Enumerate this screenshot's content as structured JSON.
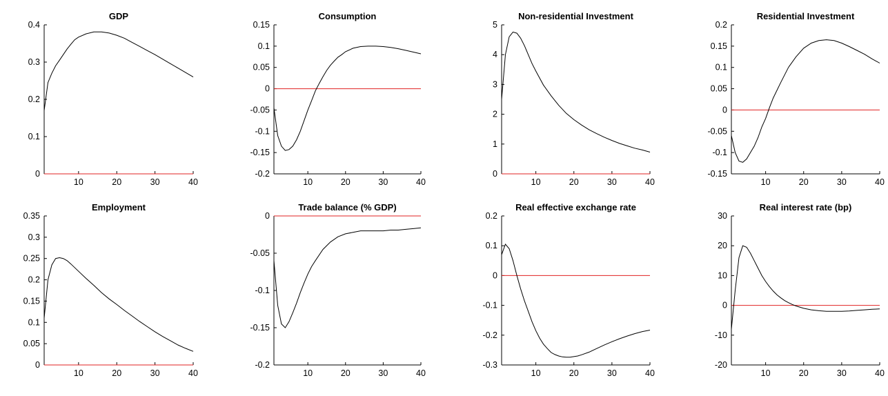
{
  "chart_data": [
    {
      "type": "line",
      "title": "GDP",
      "xlim": [
        1,
        40
      ],
      "ylim": [
        0,
        0.4
      ],
      "xticks": [
        10,
        20,
        30,
        40
      ],
      "yticks": [
        "0",
        "0.1",
        "0.2",
        "0.3",
        "0.4"
      ],
      "zero_line": true,
      "x": [
        1,
        2,
        3,
        4,
        5,
        6,
        7,
        8,
        9,
        10,
        12,
        14,
        16,
        18,
        20,
        22,
        24,
        26,
        28,
        30,
        32,
        34,
        36,
        38,
        40
      ],
      "y": [
        0.17,
        0.245,
        0.27,
        0.29,
        0.305,
        0.32,
        0.335,
        0.348,
        0.36,
        0.367,
        0.376,
        0.381,
        0.381,
        0.378,
        0.372,
        0.364,
        0.353,
        0.342,
        0.331,
        0.32,
        0.308,
        0.296,
        0.284,
        0.272,
        0.26
      ]
    },
    {
      "type": "line",
      "title": "Consumption",
      "xlim": [
        1,
        40
      ],
      "ylim": [
        -0.2,
        0.15
      ],
      "xticks": [
        10,
        20,
        30,
        40
      ],
      "yticks": [
        "-0.2",
        "-0.15",
        "-0.1",
        "-0.05",
        "0",
        "0.05",
        "0.1",
        "0.15"
      ],
      "zero_line": true,
      "x": [
        1,
        2,
        3,
        4,
        5,
        6,
        7,
        8,
        9,
        10,
        11,
        12,
        13,
        14,
        15,
        16,
        17,
        18,
        19,
        20,
        22,
        24,
        26,
        28,
        30,
        32,
        34,
        36,
        38,
        40
      ],
      "y": [
        -0.045,
        -0.11,
        -0.135,
        -0.145,
        -0.143,
        -0.135,
        -0.12,
        -0.1,
        -0.075,
        -0.05,
        -0.028,
        -0.005,
        0.012,
        0.028,
        0.043,
        0.055,
        0.065,
        0.074,
        0.08,
        0.087,
        0.095,
        0.099,
        0.1,
        0.1,
        0.099,
        0.097,
        0.094,
        0.09,
        0.086,
        0.082
      ]
    },
    {
      "type": "line",
      "title": "Non-residential Investment",
      "xlim": [
        1,
        40
      ],
      "ylim": [
        0,
        5
      ],
      "xticks": [
        10,
        20,
        30,
        40
      ],
      "yticks": [
        "0",
        "1",
        "2",
        "3",
        "4",
        "5"
      ],
      "zero_line": true,
      "x": [
        1,
        2,
        3,
        4,
        5,
        6,
        7,
        8,
        9,
        10,
        12,
        14,
        16,
        18,
        20,
        22,
        24,
        26,
        28,
        30,
        32,
        34,
        36,
        38,
        40
      ],
      "y": [
        2.5,
        4.0,
        4.6,
        4.76,
        4.72,
        4.55,
        4.3,
        4.0,
        3.7,
        3.45,
        2.98,
        2.62,
        2.3,
        2.03,
        1.82,
        1.64,
        1.48,
        1.35,
        1.23,
        1.12,
        1.02,
        0.94,
        0.86,
        0.8,
        0.73
      ]
    },
    {
      "type": "line",
      "title": "Residential Investment",
      "xlim": [
        1,
        40
      ],
      "ylim": [
        -0.15,
        0.2
      ],
      "xticks": [
        10,
        20,
        30,
        40
      ],
      "yticks": [
        "-0.15",
        "-0.1",
        "-0.05",
        "0",
        "0.05",
        "0.1",
        "0.15",
        "0.2"
      ],
      "zero_line": true,
      "x": [
        1,
        2,
        3,
        4,
        5,
        6,
        7,
        8,
        9,
        10,
        11,
        12,
        14,
        16,
        18,
        20,
        22,
        24,
        26,
        28,
        30,
        32,
        34,
        36,
        38,
        40
      ],
      "y": [
        -0.06,
        -0.1,
        -0.12,
        -0.123,
        -0.115,
        -0.1,
        -0.085,
        -0.065,
        -0.04,
        -0.02,
        0.005,
        0.028,
        0.065,
        0.1,
        0.125,
        0.145,
        0.157,
        0.163,
        0.165,
        0.163,
        0.157,
        0.149,
        0.14,
        0.131,
        0.12,
        0.11
      ]
    },
    {
      "type": "line",
      "title": "Employment",
      "xlim": [
        1,
        40
      ],
      "ylim": [
        0,
        0.35
      ],
      "xticks": [
        10,
        20,
        30,
        40
      ],
      "yticks": [
        "0",
        "0.05",
        "0.1",
        "0.15",
        "0.2",
        "0.25",
        "0.3",
        "0.35"
      ],
      "zero_line": true,
      "x": [
        1,
        2,
        3,
        4,
        5,
        6,
        7,
        8,
        10,
        12,
        14,
        16,
        18,
        20,
        22,
        24,
        26,
        28,
        30,
        32,
        34,
        36,
        38,
        40
      ],
      "y": [
        0.11,
        0.2,
        0.235,
        0.25,
        0.252,
        0.25,
        0.245,
        0.237,
        0.22,
        0.203,
        0.187,
        0.17,
        0.155,
        0.142,
        0.128,
        0.115,
        0.102,
        0.09,
        0.078,
        0.067,
        0.057,
        0.047,
        0.039,
        0.032
      ]
    },
    {
      "type": "line",
      "title": "Trade balance (% GDP)",
      "xlim": [
        1,
        40
      ],
      "ylim": [
        -0.2,
        0
      ],
      "xticks": [
        10,
        20,
        30,
        40
      ],
      "yticks": [
        "-0.2",
        "-0.15",
        "-0.1",
        "-0.05",
        "0"
      ],
      "zero_line": true,
      "x": [
        1,
        2,
        3,
        4,
        5,
        6,
        7,
        8,
        9,
        10,
        11,
        12,
        14,
        16,
        18,
        20,
        22,
        24,
        26,
        28,
        30,
        32,
        34,
        36,
        38,
        40
      ],
      "y": [
        -0.06,
        -0.12,
        -0.145,
        -0.15,
        -0.142,
        -0.13,
        -0.117,
        -0.103,
        -0.09,
        -0.078,
        -0.068,
        -0.06,
        -0.045,
        -0.035,
        -0.028,
        -0.024,
        -0.022,
        -0.02,
        -0.02,
        -0.02,
        -0.02,
        -0.019,
        -0.019,
        -0.018,
        -0.017,
        -0.016
      ]
    },
    {
      "type": "line",
      "title": "Real effective exchange rate",
      "xlim": [
        1,
        40
      ],
      "ylim": [
        -0.3,
        0.2
      ],
      "xticks": [
        10,
        20,
        30,
        40
      ],
      "yticks": [
        "-0.3",
        "-0.2",
        "-0.1",
        "0",
        "0.1",
        "0.2"
      ],
      "zero_line": true,
      "x": [
        1,
        2,
        3,
        4,
        5,
        6,
        7,
        8,
        9,
        10,
        11,
        12,
        13,
        14,
        15,
        16,
        17,
        18,
        19,
        20,
        21,
        22,
        24,
        26,
        28,
        30,
        32,
        34,
        36,
        38,
        40
      ],
      "y": [
        0.07,
        0.105,
        0.09,
        0.05,
        0.0,
        -0.045,
        -0.085,
        -0.12,
        -0.155,
        -0.185,
        -0.21,
        -0.23,
        -0.245,
        -0.258,
        -0.265,
        -0.27,
        -0.273,
        -0.274,
        -0.274,
        -0.272,
        -0.27,
        -0.266,
        -0.257,
        -0.245,
        -0.233,
        -0.222,
        -0.212,
        -0.203,
        -0.195,
        -0.188,
        -0.183
      ]
    },
    {
      "type": "line",
      "title": "Real interest rate (bp)",
      "xlim": [
        1,
        40
      ],
      "ylim": [
        -20,
        30
      ],
      "xticks": [
        10,
        20,
        30,
        40
      ],
      "yticks": [
        "-20",
        "-10",
        "0",
        "10",
        "20",
        "30"
      ],
      "zero_line": true,
      "x": [
        1,
        2,
        3,
        4,
        5,
        6,
        7,
        8,
        9,
        10,
        11,
        12,
        13,
        14,
        15,
        16,
        17,
        18,
        20,
        22,
        24,
        26,
        28,
        30,
        32,
        34,
        36,
        38,
        40
      ],
      "y": [
        -8,
        5,
        16,
        20,
        19.5,
        17.5,
        15,
        12.5,
        10,
        8,
        6.3,
        4.8,
        3.5,
        2.5,
        1.6,
        0.9,
        0.3,
        -0.2,
        -1,
        -1.5,
        -1.8,
        -2,
        -2,
        -2,
        -1.9,
        -1.7,
        -1.5,
        -1.3,
        -1.2
      ]
    }
  ]
}
